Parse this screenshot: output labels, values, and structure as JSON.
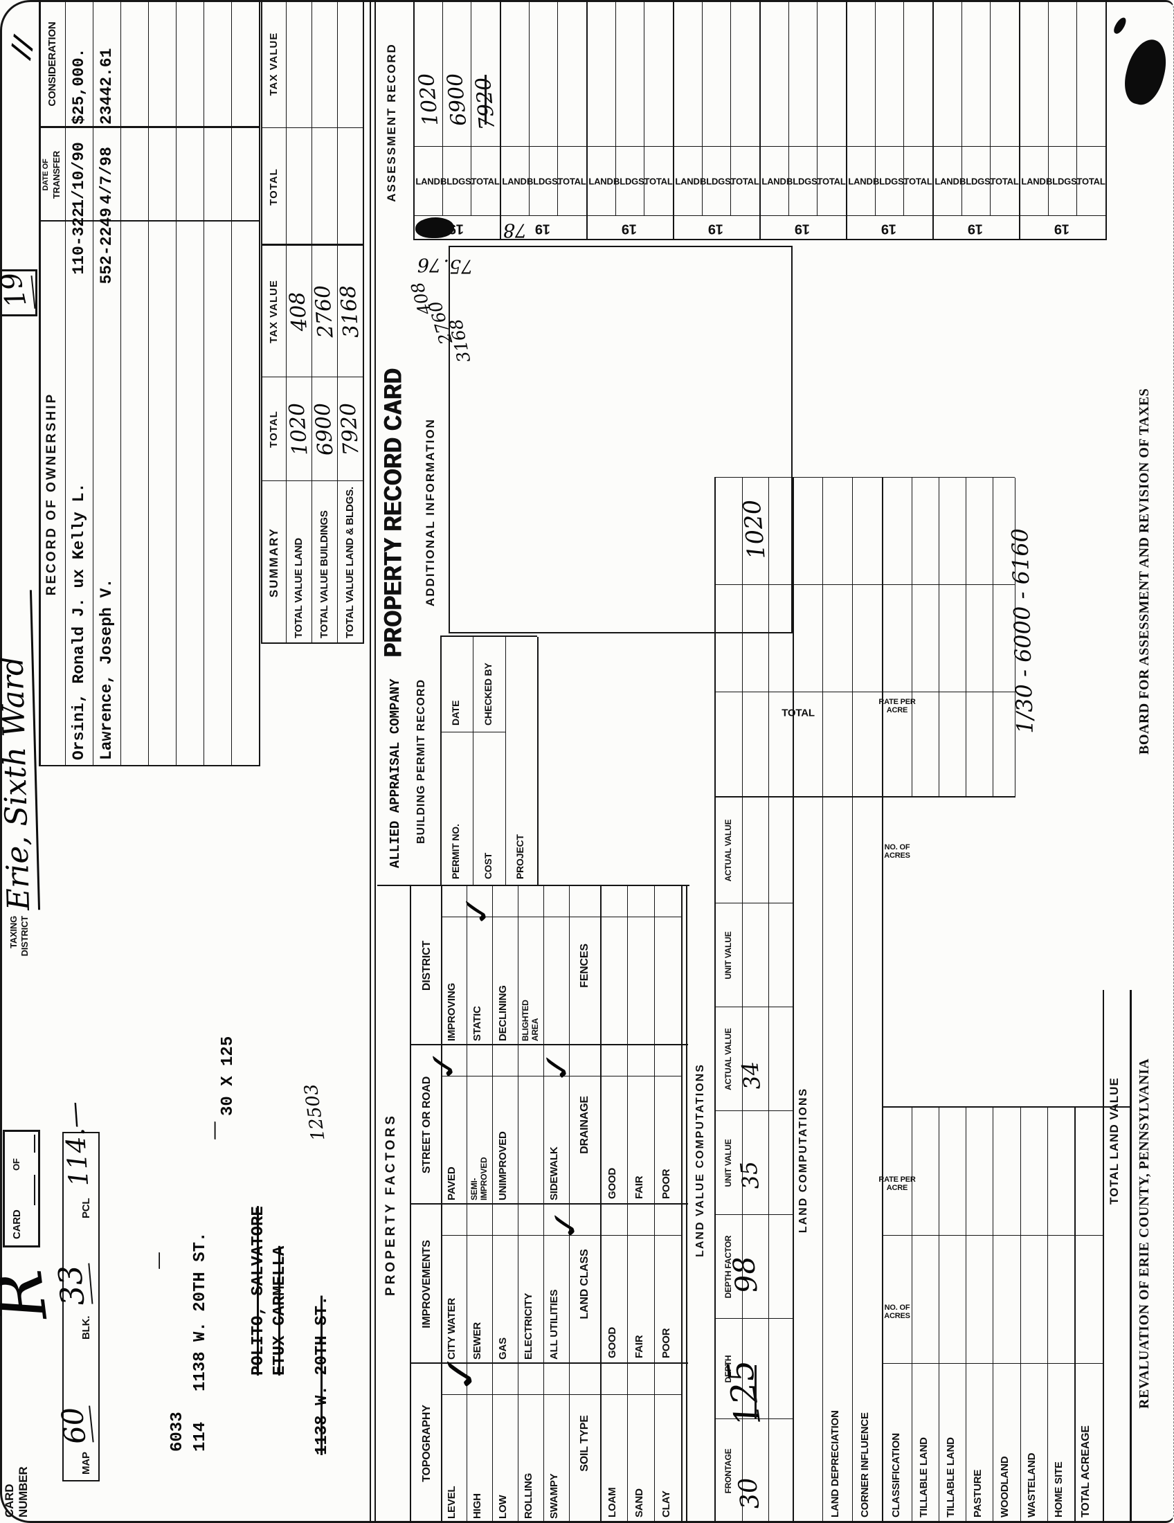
{
  "header": {
    "card_number_1": "CARD",
    "card_number_2": "NUMBER",
    "r": "R",
    "card_label": "CARD",
    "of_label": "OF",
    "map": "MAP",
    "map_value": "60",
    "blk": "BLK.",
    "blk_value": "33",
    "pcl": "PCL",
    "pcl_value": "114.—",
    "taxing_1": "TAXING",
    "taxing_2": "DISTRICT",
    "district": "Erie, Sixth Ward",
    "page_box": "19",
    "corner_marks": "//"
  },
  "owner": {
    "line1": "6033",
    "line2": "114",
    "address": "1138 W. 20TH ST.",
    "prior_owner_1": "POLITO, SALVATORE",
    "prior_owner_2": "ETUX CARMELLA",
    "prior_address": "1138 W. 20TH ST.",
    "note": "12503",
    "lot_size": "30 X 125",
    "dash": "—"
  },
  "ownership": {
    "title": "RECORD  OF  OWNERSHIP",
    "date_col_1": "DATE OF",
    "date_col_2": "TRANSFER",
    "consideration_col": "CONSIDERATION",
    "rows": [
      {
        "name": "Orsini, Ronald J. ux Kelly L.",
        "book_page": "110-322",
        "date": "1/10/90",
        "consideration": "$25,000."
      },
      {
        "name": "Lawrence, Joseph V.",
        "book_page": "552-2249",
        "date": "4/7/98",
        "consideration": "23442.61"
      }
    ],
    "empty_row_count": 5
  },
  "summary": {
    "title": "SUMMARY",
    "total_col": "TOTAL",
    "tax_col": "TAX VALUE",
    "rows": [
      {
        "label": "TOTAL VALUE LAND",
        "total": "1020",
        "tax": "408"
      },
      {
        "label": "TOTAL VALUE BUILDINGS",
        "total": "6900",
        "tax": "2760"
      },
      {
        "label": "TOTAL VALUE LAND & BLDGS.",
        "total": "7920",
        "tax": "3168"
      }
    ]
  },
  "factors": {
    "title": "PROPERTY  FACTORS",
    "columns": [
      {
        "header": "TOPOGRAPHY",
        "items": [
          "LEVEL",
          "HIGH",
          "LOW",
          "ROLLING",
          "SWAMPY"
        ]
      },
      {
        "header": "IMPROVEMENTS",
        "items": [
          "CITY WATER",
          "SEWER",
          "GAS",
          "ELECTRICITY",
          "ALL UTILITIES"
        ]
      },
      {
        "header": "STREET OR ROAD",
        "items": [
          "PAVED",
          "SEMI-\nIMPROVED",
          "UNIMPROVED",
          "",
          "SIDEWALK"
        ]
      },
      {
        "header": "DISTRICT",
        "items": [
          "IMPROVING",
          "STATIC",
          "DECLINING",
          "BLIGHTED\nAREA",
          ""
        ]
      }
    ],
    "soil_columns": [
      {
        "header": "SOIL TYPE",
        "items": [
          "LOAM",
          "SAND",
          "CLAY"
        ]
      },
      {
        "header": "LAND CLASS",
        "items": [
          "GOOD",
          "FAIR",
          "POOR"
        ]
      },
      {
        "header": "DRAINAGE",
        "items": [
          "GOOD",
          "FAIR",
          "POOR"
        ]
      },
      {
        "header": "FENCES",
        "items": [
          "",
          "",
          ""
        ]
      }
    ],
    "checked_items": [
      "LEVEL / CITY WATER",
      "PAVED",
      "STATIC",
      "ALL UTILITIES",
      "SIDEWALK"
    ]
  },
  "permit": {
    "company": "ALLIED APPRAISAL COMPANY",
    "title": "BUILDING  PERMIT  RECORD",
    "permit_no": "PERMIT NO.",
    "date": "DATE",
    "cost": "COST",
    "checked_by": "CHECKED BY",
    "project": "PROJECT"
  },
  "prc": {
    "title": "PROPERTY RECORD CARD",
    "additional_info": "ADDITIONAL  INFORMATION"
  },
  "land_value": {
    "title": "LAND  VALUE  COMPUTATIONS",
    "headers": [
      "FRONTAGE",
      "DEPTH",
      "DEPTH FACTOR",
      "UNIT VALUE",
      "ACTUAL VALUE",
      "UNIT VALUE",
      "ACTUAL VALUE"
    ],
    "values": [
      "30",
      "125",
      "98",
      "35",
      "34",
      "",
      ""
    ],
    "total_header": "TOTAL",
    "total_value": "1020"
  },
  "land_comp": {
    "title": "LAND  COMPUTATIONS",
    "row1": "LAND DEPRECIATION",
    "row2": "CORNER INFLUENCE"
  },
  "classification": {
    "header": "CLASSIFICATION",
    "acres_header": "NO. OF\nACRES",
    "rate_header": "RATE PER\nACRE",
    "rows": [
      "TILLABLE LAND",
      "TILLABLE LAND",
      "PASTURE",
      "WOODLAND",
      "WASTELAND",
      "HOME SITE",
      "TOTAL ACREAGE"
    ],
    "total_label": "TOTAL LAND VALUE",
    "note": "1/30 - 6000 -  6160"
  },
  "assessment": {
    "title": "ASSESSMENT  RECORD",
    "year_prefix": "19",
    "row_labels": [
      "LAND",
      "BLDGS.",
      "TOTAL"
    ],
    "band_count": 8,
    "entries": {
      "year_hw_1": "76",
      "year_hw_2": "75.",
      "band2_marks": "78",
      "land": "1020",
      "bldgs": "6900",
      "total": "7920",
      "tax_values": [
        "408",
        "2760",
        "3168"
      ]
    }
  },
  "footer": {
    "left": "REVALUATION OF ERIE COUNTY, PENNSYLVANIA",
    "right": "BOARD FOR ASSESSMENT AND REVISION OF TAXES"
  },
  "icons": {
    "checkmark": "✓"
  }
}
